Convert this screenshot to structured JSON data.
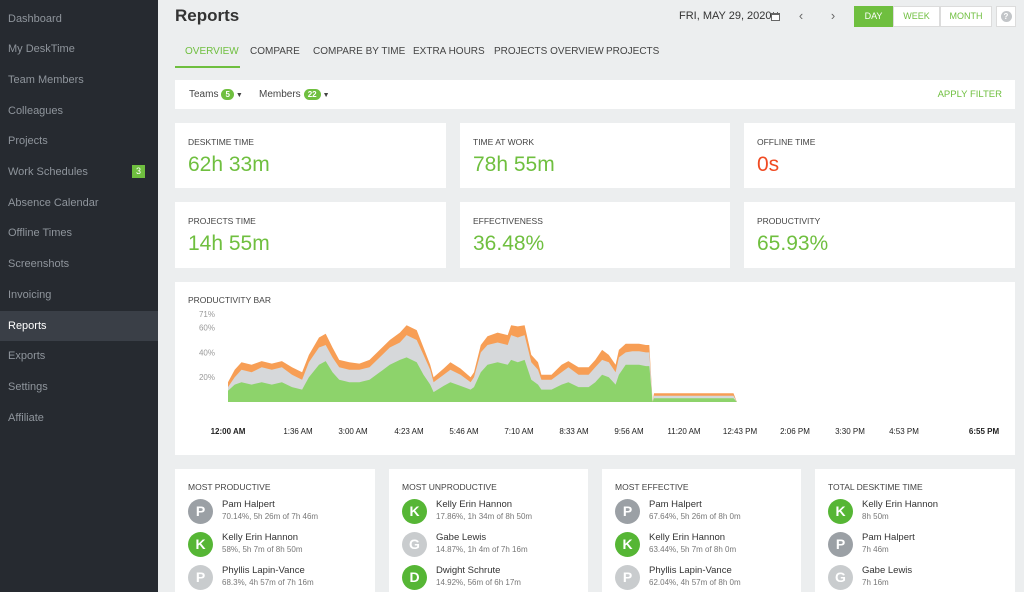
{
  "sidebar": {
    "items": [
      {
        "label": "Dashboard"
      },
      {
        "label": "My DeskTime"
      },
      {
        "label": "Team Members"
      },
      {
        "label": "Colleagues"
      },
      {
        "label": "Projects"
      },
      {
        "label": "Work Schedules",
        "badge": "3"
      },
      {
        "label": "Absence Calendar"
      },
      {
        "label": "Offline Times"
      },
      {
        "label": "Screenshots"
      },
      {
        "label": "Invoicing"
      },
      {
        "label": "Reports",
        "active": true
      },
      {
        "label": "Exports"
      },
      {
        "label": "Settings"
      },
      {
        "label": "Affiliate"
      }
    ]
  },
  "header": {
    "title": "Reports",
    "date": "FRI, MAY 29, 2020",
    "prev_arrow": "‹",
    "next_arrow": "›",
    "ranges": [
      "DAY",
      "WEEK",
      "MONTH"
    ],
    "active_range": "DAY",
    "help": "?"
  },
  "tabs": [
    "OVERVIEW",
    "COMPARE",
    "COMPARE BY TIME",
    "EXTRA HOURS",
    "PROJECTS OVERVIEW",
    "PROJECTS"
  ],
  "filters": {
    "teams_label": "Teams",
    "teams_count": "5",
    "members_label": "Members",
    "members_count": "22",
    "apply": "APPLY FILTER"
  },
  "stats": [
    {
      "label": "DESKTIME TIME",
      "value": "62h 33m"
    },
    {
      "label": "TIME AT WORK",
      "value": "78h 55m"
    },
    {
      "label": "OFFLINE TIME",
      "value": "0s",
      "status": "red"
    },
    {
      "label": "PROJECTS TIME",
      "value": "14h 55m"
    },
    {
      "label": "EFFECTIVENESS",
      "value": "36.48%"
    },
    {
      "label": "PRODUCTIVITY",
      "value": "65.93%"
    }
  ],
  "chart_data": {
    "type": "area",
    "title": "PRODUCTIVITY BAR",
    "y_ticks": [
      "71%",
      "60%",
      "40%",
      "20%"
    ],
    "x_ticks": [
      "12:00 AM",
      "1:36 AM",
      "3:00 AM",
      "4:23 AM",
      "5:46 AM",
      "7:10 AM",
      "8:33 AM",
      "9:56 AM",
      "11:20 AM",
      "12:43 PM",
      "2:06 PM",
      "3:30 PM",
      "4:53 PM",
      "6:55 PM"
    ],
    "colors": {
      "productive": "#8dd36b",
      "neutral": "#d6d8da",
      "unproductive": "#f79e55"
    },
    "x_range_minutes": [
      0,
      1135
    ],
    "y_max": 71,
    "series": [
      {
        "name": "productive",
        "points": [
          [
            0,
            9
          ],
          [
            10,
            14
          ],
          [
            20,
            16
          ],
          [
            35,
            14
          ],
          [
            50,
            16
          ],
          [
            65,
            14
          ],
          [
            80,
            16
          ],
          [
            95,
            12
          ],
          [
            110,
            10
          ],
          [
            120,
            20
          ],
          [
            135,
            30
          ],
          [
            145,
            33
          ],
          [
            155,
            24
          ],
          [
            165,
            18
          ],
          [
            180,
            16
          ],
          [
            195,
            16
          ],
          [
            210,
            18
          ],
          [
            225,
            24
          ],
          [
            240,
            30
          ],
          [
            255,
            34
          ],
          [
            265,
            36
          ],
          [
            280,
            32
          ],
          [
            290,
            22
          ],
          [
            300,
            14
          ],
          [
            305,
            8
          ],
          [
            320,
            13
          ],
          [
            330,
            16
          ],
          [
            345,
            13
          ],
          [
            360,
            10
          ],
          [
            365,
            12
          ],
          [
            375,
            24
          ],
          [
            385,
            30
          ],
          [
            400,
            32
          ],
          [
            415,
            30
          ],
          [
            420,
            34
          ],
          [
            430,
            32
          ],
          [
            440,
            34
          ],
          [
            450,
            18
          ],
          [
            460,
            14
          ],
          [
            465,
            10
          ],
          [
            480,
            10
          ],
          [
            495,
            14
          ],
          [
            505,
            16
          ],
          [
            520,
            12
          ],
          [
            535,
            12
          ],
          [
            545,
            16
          ],
          [
            555,
            22
          ],
          [
            565,
            20
          ],
          [
            575,
            14
          ],
          [
            580,
            22
          ],
          [
            590,
            30
          ],
          [
            600,
            30
          ],
          [
            610,
            30
          ],
          [
            620,
            29
          ],
          [
            625,
            29
          ],
          [
            630,
            0
          ],
          [
            632,
            3
          ],
          [
            640,
            3
          ],
          [
            660,
            3
          ],
          [
            680,
            3
          ],
          [
            700,
            3
          ],
          [
            720,
            3
          ],
          [
            740,
            3
          ],
          [
            750,
            3
          ],
          [
            755,
            0
          ]
        ]
      },
      {
        "name": "neutral",
        "points": [
          [
            0,
            12
          ],
          [
            10,
            20
          ],
          [
            20,
            26
          ],
          [
            35,
            24
          ],
          [
            50,
            28
          ],
          [
            65,
            26
          ],
          [
            80,
            28
          ],
          [
            95,
            22
          ],
          [
            110,
            18
          ],
          [
            120,
            32
          ],
          [
            135,
            44
          ],
          [
            145,
            46
          ],
          [
            155,
            36
          ],
          [
            165,
            28
          ],
          [
            180,
            26
          ],
          [
            195,
            26
          ],
          [
            210,
            28
          ],
          [
            225,
            36
          ],
          [
            240,
            44
          ],
          [
            255,
            48
          ],
          [
            265,
            54
          ],
          [
            280,
            50
          ],
          [
            290,
            38
          ],
          [
            300,
            26
          ],
          [
            305,
            16
          ],
          [
            320,
            22
          ],
          [
            330,
            26
          ],
          [
            345,
            22
          ],
          [
            360,
            16
          ],
          [
            365,
            20
          ],
          [
            375,
            40
          ],
          [
            385,
            46
          ],
          [
            400,
            48
          ],
          [
            415,
            46
          ],
          [
            420,
            54
          ],
          [
            430,
            52
          ],
          [
            440,
            54
          ],
          [
            450,
            32
          ],
          [
            460,
            26
          ],
          [
            465,
            18
          ],
          [
            480,
            18
          ],
          [
            495,
            24
          ],
          [
            505,
            28
          ],
          [
            520,
            22
          ],
          [
            535,
            22
          ],
          [
            545,
            28
          ],
          [
            555,
            34
          ],
          [
            565,
            32
          ],
          [
            575,
            24
          ],
          [
            580,
            36
          ],
          [
            590,
            40
          ],
          [
            600,
            41
          ],
          [
            610,
            41
          ],
          [
            620,
            40
          ],
          [
            625,
            40
          ],
          [
            630,
            0
          ],
          [
            632,
            5
          ],
          [
            640,
            5
          ],
          [
            660,
            5
          ],
          [
            680,
            5
          ],
          [
            700,
            5
          ],
          [
            720,
            5
          ],
          [
            740,
            5
          ],
          [
            750,
            5
          ],
          [
            755,
            0
          ]
        ]
      },
      {
        "name": "unproductive",
        "points": [
          [
            0,
            16
          ],
          [
            10,
            26
          ],
          [
            20,
            32
          ],
          [
            35,
            30
          ],
          [
            50,
            33
          ],
          [
            65,
            31
          ],
          [
            80,
            33
          ],
          [
            95,
            28
          ],
          [
            110,
            24
          ],
          [
            120,
            38
          ],
          [
            135,
            52
          ],
          [
            145,
            55
          ],
          [
            155,
            44
          ],
          [
            165,
            34
          ],
          [
            180,
            32
          ],
          [
            195,
            31
          ],
          [
            210,
            34
          ],
          [
            225,
            42
          ],
          [
            240,
            50
          ],
          [
            255,
            56
          ],
          [
            265,
            62
          ],
          [
            280,
            58
          ],
          [
            290,
            44
          ],
          [
            300,
            30
          ],
          [
            305,
            20
          ],
          [
            320,
            27
          ],
          [
            330,
            32
          ],
          [
            345,
            27
          ],
          [
            360,
            20
          ],
          [
            365,
            24
          ],
          [
            375,
            46
          ],
          [
            385,
            53
          ],
          [
            400,
            56
          ],
          [
            415,
            54
          ],
          [
            420,
            62
          ],
          [
            430,
            61
          ],
          [
            440,
            62
          ],
          [
            450,
            38
          ],
          [
            460,
            32
          ],
          [
            465,
            22
          ],
          [
            480,
            22
          ],
          [
            495,
            30
          ],
          [
            505,
            33
          ],
          [
            520,
            28
          ],
          [
            535,
            28
          ],
          [
            545,
            34
          ],
          [
            555,
            42
          ],
          [
            565,
            38
          ],
          [
            575,
            30
          ],
          [
            580,
            42
          ],
          [
            590,
            47
          ],
          [
            600,
            47
          ],
          [
            610,
            47
          ],
          [
            620,
            46
          ],
          [
            625,
            46
          ],
          [
            630,
            0
          ],
          [
            632,
            7
          ],
          [
            640,
            7
          ],
          [
            660,
            7
          ],
          [
            680,
            7
          ],
          [
            700,
            7
          ],
          [
            720,
            7
          ],
          [
            740,
            7
          ],
          [
            750,
            7
          ],
          [
            755,
            0
          ]
        ]
      }
    ]
  },
  "lists": [
    {
      "title": "MOST PRODUCTIVE",
      "people": [
        {
          "initial": "P",
          "name": "Pam Halpert",
          "detail": "70.14%, 5h 26m of 7h 46m",
          "color": "#9ba0a5"
        },
        {
          "initial": "K",
          "name": "Kelly Erin Hannon",
          "detail": "58%, 5h 7m of 8h 50m",
          "color": "#56b635"
        },
        {
          "initial": "P",
          "name": "Phyllis Lapin-Vance",
          "detail": "68.3%, 4h 57m of 7h 16m",
          "color": "#c9ccce"
        }
      ]
    },
    {
      "title": "MOST UNPRODUCTIVE",
      "people": [
        {
          "initial": "K",
          "name": "Kelly Erin Hannon",
          "detail": "17.86%, 1h 34m of 8h 50m",
          "color": "#56b635"
        },
        {
          "initial": "G",
          "name": "Gabe Lewis",
          "detail": "14.87%, 1h 4m of 7h 16m",
          "color": "#c9ccce"
        },
        {
          "initial": "D",
          "name": "Dwight Schrute",
          "detail": "14.92%, 56m of 6h 17m",
          "color": "#56b635"
        }
      ]
    },
    {
      "title": "MOST EFFECTIVE",
      "people": [
        {
          "initial": "P",
          "name": "Pam Halpert",
          "detail": "67.64%, 5h 26m of 8h 0m",
          "color": "#9ba0a5"
        },
        {
          "initial": "K",
          "name": "Kelly Erin Hannon",
          "detail": "63.44%, 5h 7m of 8h 0m",
          "color": "#56b635"
        },
        {
          "initial": "P",
          "name": "Phyllis Lapin-Vance",
          "detail": "62.04%, 4h 57m of 8h 0m",
          "color": "#c9ccce"
        }
      ]
    },
    {
      "title": "TOTAL DESKTIME TIME",
      "people": [
        {
          "initial": "K",
          "name": "Kelly Erin Hannon",
          "detail": "8h 50m",
          "color": "#56b635"
        },
        {
          "initial": "P",
          "name": "Pam Halpert",
          "detail": "7h 46m",
          "color": "#9ba0a5"
        },
        {
          "initial": "G",
          "name": "Gabe Lewis",
          "detail": "7h 16m",
          "color": "#c9ccce"
        }
      ]
    }
  ]
}
